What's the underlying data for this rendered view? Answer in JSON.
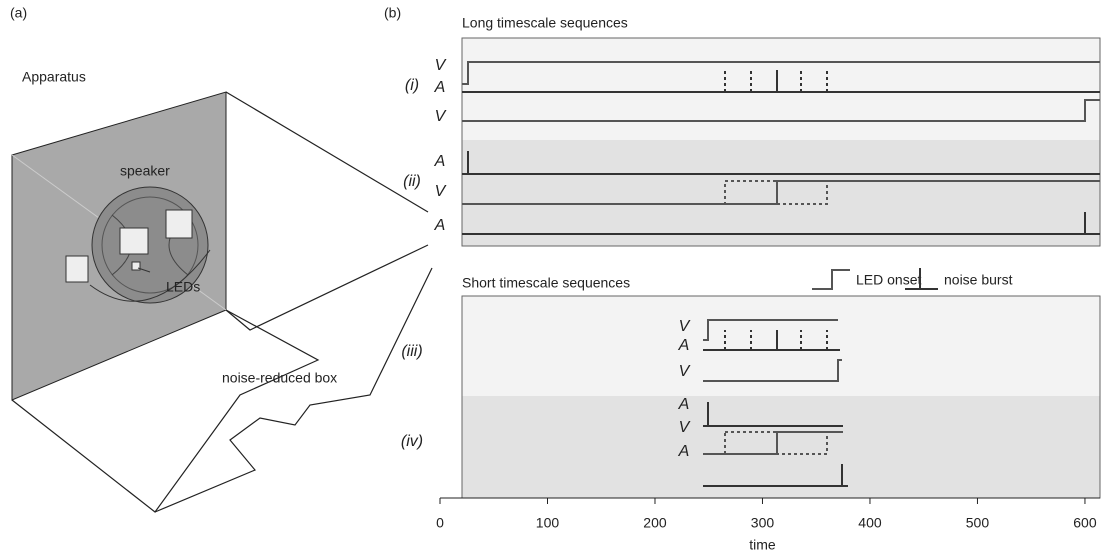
{
  "panel_a": {
    "label": "(a)",
    "title": "Apparatus",
    "speaker": "speaker",
    "leds": "LEDs",
    "box": "noise-reduced box"
  },
  "panel_b": {
    "label": "(b)",
    "long_title": "Long timescale sequences",
    "short_title": "Short timescale sequences",
    "legend": {
      "led": "LED onset",
      "noise": "noise burst"
    },
    "conditions": [
      "(i)",
      "(ii)",
      "(iii)",
      "(iv)"
    ],
    "long_rows": [
      "V",
      "A",
      "V",
      "A",
      "V",
      "A"
    ],
    "short_rows": [
      "V",
      "A",
      "V",
      "A",
      "V",
      "A"
    ],
    "chart_data": {
      "type": "timeline",
      "xlabel": "time",
      "xlim": [
        0,
        614
      ],
      "xticks": [
        0,
        100,
        200,
        300,
        400,
        500,
        600
      ]
    }
  }
}
